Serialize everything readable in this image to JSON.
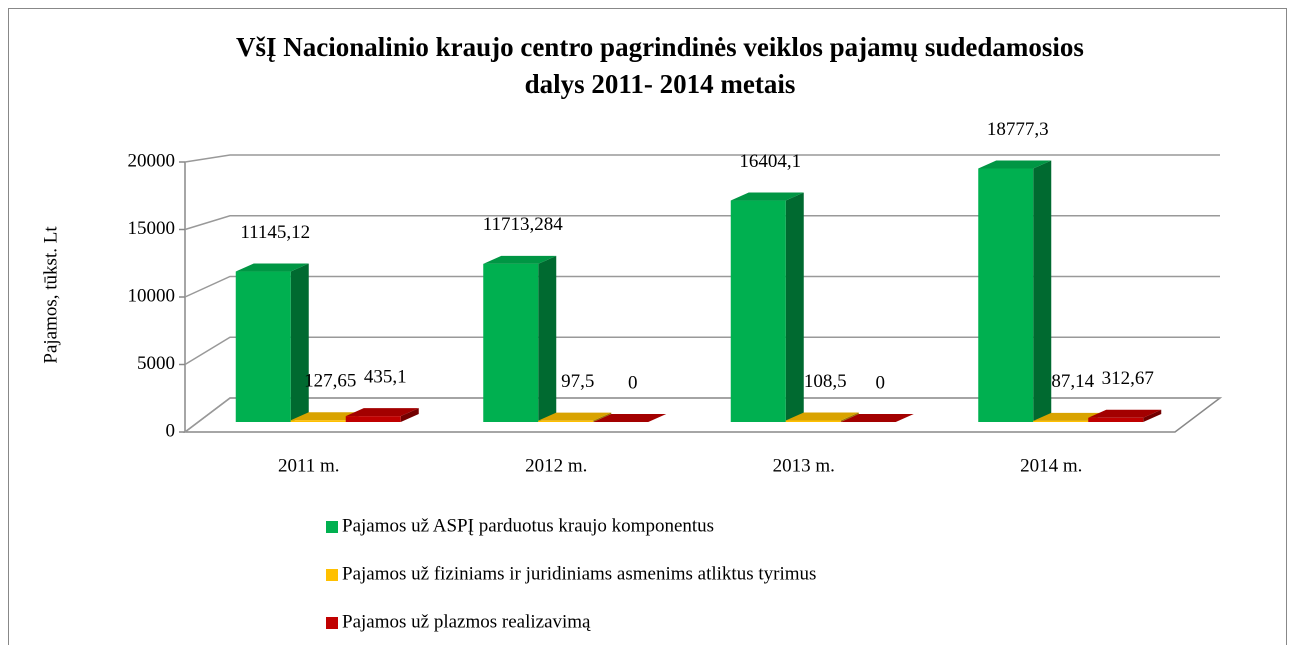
{
  "chart_data": {
    "type": "bar3d",
    "title": [
      "VšĮ Nacionalinio kraujo centro pagrindinės veiklos pajamų sudedamosios",
      "dalys 2011- 2014 metais"
    ],
    "y_label": "Pajamos, tūkst. Lt",
    "categories": [
      "2011 m.",
      "2012 m.",
      "2013 m.",
      "2014 m."
    ],
    "series": [
      {
        "name": "Pajamos už ASPĮ parduotus kraujo komponentus",
        "color": "#00b050",
        "values": [
          11145.12,
          11713.284,
          16404.1,
          18777.3
        ],
        "value_labels": [
          "11145,12",
          "11713,284",
          "16404,1",
          "18777,3"
        ]
      },
      {
        "name": "Pajamos už fiziniams ir juridiniams asmenims atliktus tyrimus",
        "color": "#ffc000",
        "values": [
          127.65,
          97.5,
          108.5,
          87.14
        ],
        "value_labels": [
          "127,65",
          "97,5",
          "108,5",
          "87,14"
        ]
      },
      {
        "name": "Pajamos už plazmos realizavimą",
        "color": "#c00000",
        "values": [
          435.1,
          0,
          0,
          312.67
        ],
        "value_labels": [
          "435,1",
          "0",
          "0",
          "312,67"
        ]
      }
    ],
    "ylim": [
      0,
      20000
    ],
    "yticks": [
      0,
      5000,
      10000,
      15000,
      20000
    ],
    "grid": true,
    "legend": "bottom"
  }
}
